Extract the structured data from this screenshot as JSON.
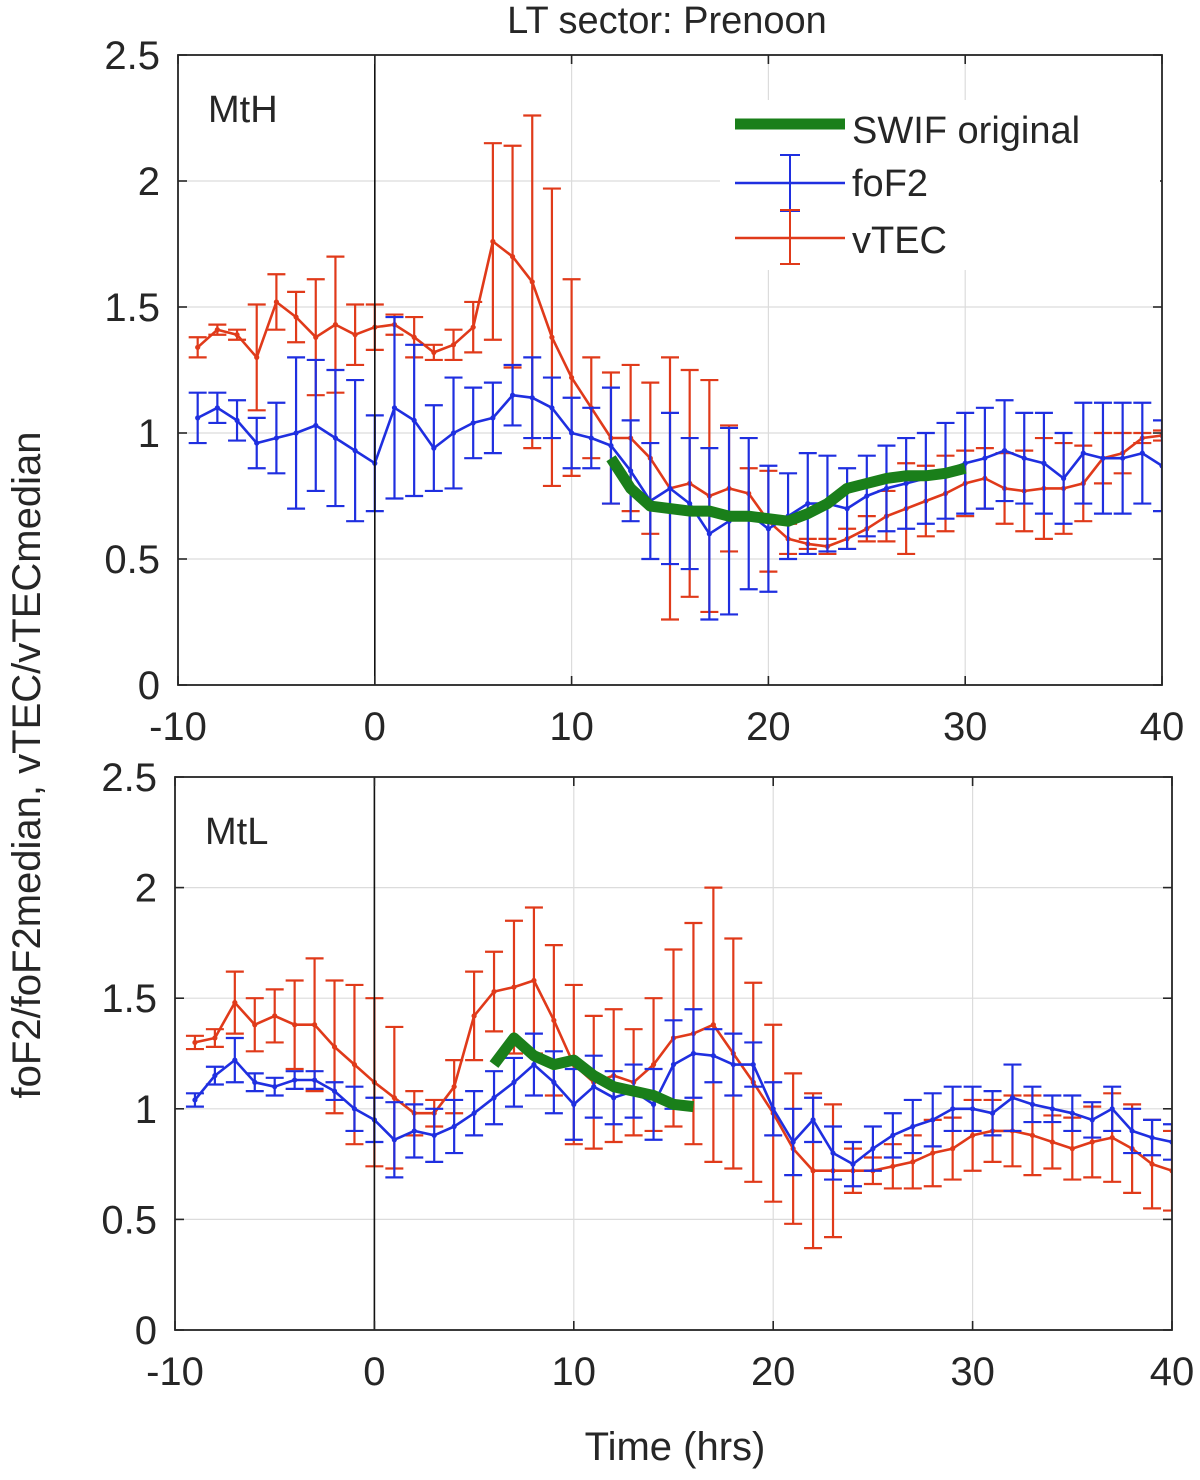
{
  "figure": {
    "title": "LT sector: Prenoon",
    "shared_ylabel": "foF2/foF2median, vTEC/vTECmedian",
    "xlabel": "Time (hrs)"
  },
  "legend": {
    "entries": [
      {
        "key": "swif",
        "label": "SWIF original",
        "color": "#1a7f1a"
      },
      {
        "key": "fof2",
        "label": "foF2",
        "color": "#1f2fe0"
      },
      {
        "key": "vtec",
        "label": "vTEC",
        "color": "#e03a1a"
      }
    ]
  },
  "chart_data": [
    {
      "type": "line",
      "panel_label": "MtH",
      "xlim": [
        -10,
        40
      ],
      "ylim": [
        0,
        2.5
      ],
      "xticks": [
        -10,
        0,
        10,
        20,
        30,
        40
      ],
      "yticks": [
        0,
        0.5,
        1,
        1.5,
        2,
        2.5
      ],
      "grid": true,
      "legend_position": "top-right",
      "vline_x": 0,
      "series": [
        {
          "name": "SWIF original",
          "color": "#1a7f1a",
          "x": [
            12,
            13,
            14,
            15,
            16,
            17,
            18,
            19,
            20,
            21,
            22,
            23,
            24,
            25,
            26,
            27,
            28,
            29,
            30
          ],
          "y": [
            0.9,
            0.78,
            0.71,
            0.7,
            0.69,
            0.69,
            0.67,
            0.67,
            0.66,
            0.65,
            0.68,
            0.72,
            0.78,
            0.8,
            0.82,
            0.83,
            0.83,
            0.84,
            0.86
          ]
        },
        {
          "name": "foF2",
          "color": "#1f2fe0",
          "x": [
            -9,
            -8,
            -7,
            -6,
            -5,
            -4,
            -3,
            -2,
            -1,
            0,
            1,
            2,
            3,
            4,
            5,
            6,
            7,
            8,
            9,
            10,
            11,
            12,
            13,
            14,
            15,
            16,
            17,
            18,
            19,
            20,
            21,
            22,
            23,
            24,
            25,
            26,
            27,
            28,
            29,
            30,
            31,
            32,
            33,
            34,
            35,
            36,
            37,
            38,
            39,
            40
          ],
          "y": [
            1.06,
            1.1,
            1.05,
            0.96,
            0.98,
            1.0,
            1.03,
            0.98,
            0.93,
            0.88,
            1.1,
            1.05,
            0.94,
            1.0,
            1.04,
            1.06,
            1.15,
            1.14,
            1.1,
            1.0,
            0.98,
            0.95,
            0.85,
            0.73,
            0.78,
            0.72,
            0.6,
            0.65,
            0.68,
            0.62,
            0.67,
            0.72,
            0.72,
            0.7,
            0.75,
            0.78,
            0.8,
            0.82,
            0.85,
            0.88,
            0.9,
            0.93,
            0.9,
            0.88,
            0.82,
            0.92,
            0.9,
            0.9,
            0.92,
            0.87
          ],
          "err": [
            0.1,
            0.06,
            0.08,
            0.1,
            0.14,
            0.3,
            0.26,
            0.27,
            0.28,
            0.19,
            0.36,
            0.3,
            0.17,
            0.22,
            0.14,
            0.14,
            0.12,
            0.16,
            0.12,
            0.14,
            0.12,
            0.23,
            0.2,
            0.23,
            0.3,
            0.26,
            0.34,
            0.37,
            0.3,
            0.25,
            0.17,
            0.2,
            0.19,
            0.16,
            0.16,
            0.17,
            0.18,
            0.18,
            0.19,
            0.2,
            0.2,
            0.2,
            0.18,
            0.2,
            0.18,
            0.2,
            0.22,
            0.22,
            0.2,
            0.18
          ]
        },
        {
          "name": "vTEC",
          "color": "#e03a1a",
          "x": [
            -9,
            -8,
            -7,
            -6,
            -5,
            -4,
            -3,
            -2,
            -1,
            0,
            1,
            2,
            3,
            4,
            5,
            6,
            7,
            8,
            9,
            10,
            11,
            12,
            13,
            14,
            15,
            16,
            17,
            18,
            19,
            20,
            21,
            22,
            23,
            24,
            25,
            26,
            27,
            28,
            29,
            30,
            31,
            32,
            33,
            34,
            35,
            36,
            37,
            38,
            39,
            40
          ],
          "y": [
            1.34,
            1.41,
            1.39,
            1.3,
            1.52,
            1.46,
            1.38,
            1.43,
            1.39,
            1.42,
            1.43,
            1.38,
            1.32,
            1.35,
            1.42,
            1.76,
            1.7,
            1.6,
            1.38,
            1.22,
            1.1,
            0.98,
            0.98,
            0.9,
            0.78,
            0.8,
            0.75,
            0.78,
            0.76,
            0.65,
            0.58,
            0.56,
            0.55,
            0.58,
            0.62,
            0.67,
            0.7,
            0.73,
            0.76,
            0.8,
            0.82,
            0.78,
            0.77,
            0.78,
            0.78,
            0.8,
            0.9,
            0.92,
            0.98,
            0.99
          ],
          "err": [
            0.04,
            0.02,
            0.02,
            0.21,
            0.11,
            0.1,
            0.23,
            0.27,
            0.12,
            0.09,
            0.04,
            0.08,
            0.03,
            0.06,
            0.1,
            0.39,
            0.44,
            0.66,
            0.59,
            0.39,
            0.2,
            0.26,
            0.29,
            0.3,
            0.52,
            0.45,
            0.46,
            0.25,
            0.1,
            0.2,
            0.06,
            0.02,
            0.03,
            0.04,
            0.05,
            0.1,
            0.18,
            0.14,
            0.15,
            0.13,
            0.12,
            0.14,
            0.16,
            0.2,
            0.18,
            0.15,
            0.1,
            0.08,
            0.02,
            0.02
          ]
        }
      ]
    },
    {
      "type": "line",
      "panel_label": "MtL",
      "xlim": [
        -10,
        40
      ],
      "ylim": [
        0,
        2.5
      ],
      "xticks": [
        -10,
        0,
        10,
        20,
        30,
        40
      ],
      "yticks": [
        0,
        0.5,
        1,
        1.5,
        2,
        2.5
      ],
      "grid": true,
      "vline_x": 0,
      "series": [
        {
          "name": "SWIF original",
          "color": "#1a7f1a",
          "x": [
            6,
            7,
            8,
            9,
            10,
            11,
            12,
            13,
            14,
            15,
            16
          ],
          "y": [
            1.2,
            1.32,
            1.24,
            1.2,
            1.22,
            1.15,
            1.1,
            1.08,
            1.06,
            1.02,
            1.01
          ]
        },
        {
          "name": "foF2",
          "color": "#1f2fe0",
          "x": [
            -9,
            -8,
            -7,
            -6,
            -5,
            -4,
            -3,
            -2,
            -1,
            0,
            1,
            2,
            3,
            4,
            5,
            6,
            7,
            8,
            9,
            10,
            11,
            12,
            13,
            14,
            15,
            16,
            17,
            18,
            19,
            20,
            21,
            22,
            23,
            24,
            25,
            26,
            27,
            28,
            29,
            30,
            31,
            32,
            33,
            34,
            35,
            36,
            37,
            38,
            39,
            40
          ],
          "y": [
            1.04,
            1.15,
            1.22,
            1.12,
            1.1,
            1.13,
            1.13,
            1.08,
            1.0,
            0.95,
            0.86,
            0.9,
            0.88,
            0.92,
            0.98,
            1.05,
            1.12,
            1.2,
            1.12,
            1.02,
            1.1,
            1.05,
            1.08,
            1.02,
            1.2,
            1.25,
            1.24,
            1.2,
            1.2,
            1.0,
            0.85,
            0.95,
            0.8,
            0.75,
            0.82,
            0.88,
            0.92,
            0.95,
            1.0,
            1.0,
            0.98,
            1.05,
            1.02,
            1.0,
            0.98,
            0.95,
            1.0,
            0.9,
            0.87,
            0.85
          ],
          "err": [
            0.03,
            0.04,
            0.1,
            0.04,
            0.04,
            0.04,
            0.04,
            0.04,
            0.1,
            0.1,
            0.17,
            0.12,
            0.12,
            0.12,
            0.1,
            0.12,
            0.11,
            0.14,
            0.14,
            0.16,
            0.14,
            0.12,
            0.12,
            0.16,
            0.2,
            0.2,
            0.12,
            0.14,
            0.1,
            0.12,
            0.15,
            0.1,
            0.12,
            0.1,
            0.1,
            0.1,
            0.12,
            0.12,
            0.1,
            0.1,
            0.1,
            0.15,
            0.08,
            0.06,
            0.08,
            0.08,
            0.1,
            0.1,
            0.08,
            0.08
          ]
        },
        {
          "name": "vTEC",
          "color": "#e03a1a",
          "x": [
            -9,
            -8,
            -7,
            -6,
            -5,
            -4,
            -3,
            -2,
            -1,
            0,
            1,
            2,
            3,
            4,
            5,
            6,
            7,
            8,
            9,
            10,
            11,
            12,
            13,
            14,
            15,
            16,
            17,
            18,
            19,
            20,
            21,
            22,
            23,
            24,
            25,
            26,
            27,
            28,
            29,
            30,
            31,
            32,
            33,
            34,
            35,
            36,
            37,
            38,
            39,
            40
          ],
          "y": [
            1.3,
            1.32,
            1.48,
            1.38,
            1.42,
            1.38,
            1.38,
            1.28,
            1.2,
            1.12,
            1.05,
            0.98,
            0.98,
            1.1,
            1.42,
            1.53,
            1.55,
            1.58,
            1.4,
            1.2,
            1.12,
            1.15,
            1.12,
            1.2,
            1.32,
            1.34,
            1.38,
            1.25,
            1.12,
            0.98,
            0.82,
            0.72,
            0.72,
            0.72,
            0.72,
            0.74,
            0.76,
            0.8,
            0.82,
            0.88,
            0.9,
            0.9,
            0.88,
            0.85,
            0.82,
            0.85,
            0.87,
            0.82,
            0.75,
            0.72
          ],
          "err": [
            0.03,
            0.04,
            0.14,
            0.12,
            0.12,
            0.2,
            0.3,
            0.3,
            0.36,
            0.38,
            0.32,
            0.1,
            0.06,
            0.12,
            0.2,
            0.18,
            0.3,
            0.33,
            0.34,
            0.36,
            0.3,
            0.3,
            0.24,
            0.3,
            0.4,
            0.5,
            0.62,
            0.52,
            0.45,
            0.4,
            0.34,
            0.35,
            0.3,
            0.1,
            0.06,
            0.1,
            0.12,
            0.15,
            0.14,
            0.16,
            0.14,
            0.16,
            0.18,
            0.12,
            0.14,
            0.16,
            0.2,
            0.2,
            0.2,
            0.18
          ]
        }
      ]
    }
  ]
}
